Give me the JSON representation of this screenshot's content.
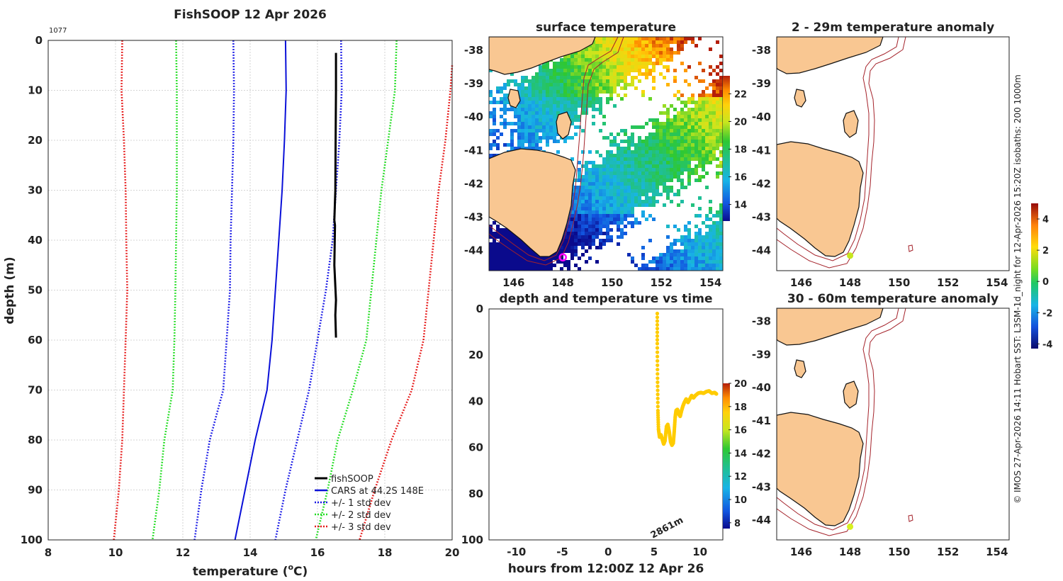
{
  "profile_title": "FishSOOP 12 Apr 2026",
  "profile_id": "1077",
  "sst_title": "surface temperature",
  "anom1_title": "2 - 29m temperature anomaly",
  "anom2_title": "30 - 60m temperature anomaly",
  "tvd_title": "depth and temperature vs time",
  "side_note": "© IMOS 27-Apr-2026 14:11 Hobart SST: L3SM-1d_night for 12-Apr-2026 15:20Z isobaths: 200  1000m",
  "bottom_depth_label": "2861m",
  "colors": {
    "land": "#f9c792",
    "isobath": "#a4222a",
    "fishsoop": "#000000",
    "cars_mean": "#0a10d8",
    "std1": "#1a1ae6",
    "std2": "#22dd22",
    "std3": "#e61a1a",
    "track": "#ffcc00"
  },
  "chart_data": [
    {
      "type": "line",
      "title": "FishSOOP 12 Apr 2026",
      "xlabel": "temperature (°C)",
      "xlabel_main": "temperature (",
      "xlabel_sup": "o",
      "xlabel_tail": "C)",
      "ylabel": "depth (m)",
      "xlim": [
        8,
        20
      ],
      "ylim": [
        100,
        0
      ],
      "xticks": [
        "8",
        "10",
        "12",
        "14",
        "16",
        "18",
        "20"
      ],
      "yticks": [
        "0",
        "10",
        "20",
        "30",
        "40",
        "50",
        "60",
        "70",
        "80",
        "90",
        "100"
      ],
      "grid": true,
      "legend_position": "bottom-right",
      "legend": [
        "fishSOOP",
        "CARS at 44.2S 148E",
        "+/- 1 std dev",
        "+/- 2 std dev",
        "+/- 3 std dev"
      ],
      "series": [
        {
          "name": "fishSOOP",
          "style": "solid",
          "width": 3,
          "points": [
            [
              16.55,
              2.5
            ],
            [
              16.55,
              10
            ],
            [
              16.54,
              20
            ],
            [
              16.53,
              30
            ],
            [
              16.5,
              36
            ],
            [
              16.52,
              37
            ],
            [
              16.5,
              45
            ],
            [
              16.55,
              52
            ],
            [
              16.53,
              55
            ],
            [
              16.55,
              59.5
            ]
          ]
        },
        {
          "name": "CARS at 44.2S 148E",
          "style": "solid",
          "width": 2,
          "points": [
            [
              15.05,
              0
            ],
            [
              15.07,
              10
            ],
            [
              15.02,
              20
            ],
            [
              14.95,
              30
            ],
            [
              14.85,
              40
            ],
            [
              14.75,
              50
            ],
            [
              14.65,
              60
            ],
            [
              14.5,
              70
            ],
            [
              14.15,
              80
            ],
            [
              13.85,
              90
            ],
            [
              13.55,
              100
            ]
          ]
        },
        {
          "name": "+/- 1 std dev",
          "style": "dotted",
          "width": 2,
          "points": [
            [
              13.5,
              0
            ],
            [
              13.52,
              10
            ],
            [
              13.5,
              20
            ],
            [
              13.46,
              30
            ],
            [
              13.42,
              40
            ],
            [
              13.4,
              50
            ],
            [
              13.3,
              60
            ],
            [
              13.2,
              70
            ],
            [
              12.8,
              80
            ],
            [
              12.55,
              90
            ],
            [
              12.35,
              100
            ]
          ]
        },
        {
          "name": "+/- 1 std dev",
          "style": "dotted",
          "width": 2,
          "points": [
            [
              16.7,
              0
            ],
            [
              16.72,
              10
            ],
            [
              16.65,
              20
            ],
            [
              16.55,
              30
            ],
            [
              16.45,
              40
            ],
            [
              16.25,
              50
            ],
            [
              16,
              60
            ],
            [
              15.75,
              70
            ],
            [
              15.4,
              80
            ],
            [
              15.05,
              90
            ],
            [
              14.75,
              100
            ]
          ]
        },
        {
          "name": "+/- 2 std dev",
          "style": "dotted",
          "width": 2,
          "points": [
            [
              11.8,
              0
            ],
            [
              11.82,
              10
            ],
            [
              11.82,
              20
            ],
            [
              11.82,
              30
            ],
            [
              11.8,
              40
            ],
            [
              11.78,
              50
            ],
            [
              11.75,
              60
            ],
            [
              11.7,
              70
            ],
            [
              11.45,
              80
            ],
            [
              11.3,
              90
            ],
            [
              11.1,
              100
            ]
          ]
        },
        {
          "name": "+/- 2 std dev",
          "style": "dotted",
          "width": 2,
          "points": [
            [
              18.35,
              0
            ],
            [
              18.3,
              10
            ],
            [
              18.1,
              20
            ],
            [
              17.9,
              30
            ],
            [
              17.75,
              40
            ],
            [
              17.6,
              50
            ],
            [
              17.45,
              60
            ],
            [
              17.05,
              70
            ],
            [
              16.6,
              80
            ],
            [
              16.3,
              90
            ],
            [
              15.95,
              100
            ]
          ]
        },
        {
          "name": "+/- 3 std dev",
          "style": "dotted",
          "width": 2,
          "points": [
            [
              10.2,
              0
            ],
            [
              10.18,
              10
            ],
            [
              10.25,
              20
            ],
            [
              10.3,
              30
            ],
            [
              10.32,
              40
            ],
            [
              10.35,
              50
            ],
            [
              10.3,
              60
            ],
            [
              10.25,
              70
            ],
            [
              10.2,
              80
            ],
            [
              10.1,
              90
            ],
            [
              9.95,
              100
            ]
          ]
        },
        {
          "name": "+/- 3 std dev",
          "style": "dotted",
          "width": 2,
          "points": [
            [
              20,
              5
            ],
            [
              19.95,
              10
            ],
            [
              19.8,
              20
            ],
            [
              19.6,
              30
            ],
            [
              19.45,
              40
            ],
            [
              19.3,
              50
            ],
            [
              19.15,
              60
            ],
            [
              18.8,
              70
            ],
            [
              18.2,
              80
            ],
            [
              17.7,
              90
            ],
            [
              17.25,
              100
            ]
          ]
        }
      ]
    },
    {
      "type": "heatmap",
      "title": "surface temperature",
      "xlim": [
        145,
        154.5
      ],
      "ylim": [
        -44.6,
        -37.6
      ],
      "xticks": [
        "146",
        "148",
        "150",
        "152",
        "154"
      ],
      "yticks": [
        "-38",
        "-39",
        "-40",
        "-41",
        "-42",
        "-43",
        "-44"
      ],
      "colorbar": {
        "range": [
          12.8,
          23.3
        ],
        "ticks": [
          "14",
          "16",
          "18",
          "20",
          "22"
        ]
      },
      "vessel_position": [
        148,
        -44.2
      ]
    },
    {
      "type": "scatter",
      "title": "depth and temperature vs time",
      "xlabel": "hours from 12:00Z 12 Apr 26",
      "xlim": [
        -13,
        12.5
      ],
      "ylim": [
        100,
        0
      ],
      "xticks": [
        "-10",
        "-5",
        "0",
        "5",
        "10"
      ],
      "yticks": [
        "0",
        "20",
        "40",
        "60",
        "80",
        "100"
      ],
      "colorbar": {
        "range": [
          7.5,
          20
        ],
        "ticks": [
          "8",
          "10",
          "12",
          "14",
          "16",
          "18",
          "20"
        ]
      },
      "points": [
        [
          5.35,
          2
        ],
        [
          5.35,
          15
        ],
        [
          5.38,
          30
        ],
        [
          5.42,
          44
        ],
        [
          5.48,
          52
        ],
        [
          5.6,
          55.5
        ],
        [
          5.75,
          54.5
        ],
        [
          5.9,
          56.5
        ],
        [
          6.05,
          58.5
        ],
        [
          6.2,
          57
        ],
        [
          6.35,
          51
        ],
        [
          6.5,
          50
        ],
        [
          6.65,
          53
        ],
        [
          6.8,
          57.5
        ],
        [
          6.95,
          59
        ],
        [
          7.1,
          58
        ],
        [
          7.2,
          53
        ],
        [
          7.3,
          47
        ],
        [
          7.4,
          44
        ],
        [
          7.55,
          43.5
        ],
        [
          7.7,
          45.5
        ],
        [
          7.85,
          46.5
        ],
        [
          8,
          44
        ],
        [
          8.15,
          42
        ],
        [
          8.3,
          40.5
        ],
        [
          8.5,
          39
        ],
        [
          8.7,
          40.5
        ],
        [
          8.9,
          39
        ],
        [
          9.1,
          37.5
        ],
        [
          9.3,
          38.5
        ],
        [
          9.5,
          37.5
        ],
        [
          9.8,
          36.5
        ],
        [
          10.1,
          36.2
        ],
        [
          10.4,
          36.5
        ],
        [
          10.7,
          35.8
        ],
        [
          11,
          35.5
        ],
        [
          11.3,
          36.5
        ],
        [
          11.6,
          36.2
        ],
        [
          11.8,
          36.8
        ]
      ]
    },
    {
      "type": "scatter",
      "title": "2 - 29m temperature anomaly",
      "xlim": [
        145,
        154.5
      ],
      "ylim": [
        -44.6,
        -37.6
      ],
      "xticks": [
        "146",
        "148",
        "150",
        "152",
        "154"
      ],
      "yticks": [
        "-38",
        "-39",
        "-40",
        "-41",
        "-42",
        "-43",
        "-44"
      ],
      "colorbar": {
        "range": [
          -4.3,
          5
        ],
        "ticks": [
          "-4",
          "-2",
          "0",
          "2",
          "4"
        ]
      },
      "points": [
        {
          "lon": 148,
          "lat": -44.15,
          "anomaly": 0.9
        }
      ]
    },
    {
      "type": "scatter",
      "title": "30 - 60m temperature anomaly",
      "xlim": [
        145,
        154.5
      ],
      "ylim": [
        -44.6,
        -37.6
      ],
      "xticks": [
        "146",
        "148",
        "150",
        "152",
        "154"
      ],
      "yticks": [
        "-38",
        "-39",
        "-40",
        "-41",
        "-42",
        "-43",
        "-44"
      ],
      "points": [
        {
          "lon": 148,
          "lat": -44.2,
          "anomaly": 1.3
        }
      ]
    }
  ]
}
